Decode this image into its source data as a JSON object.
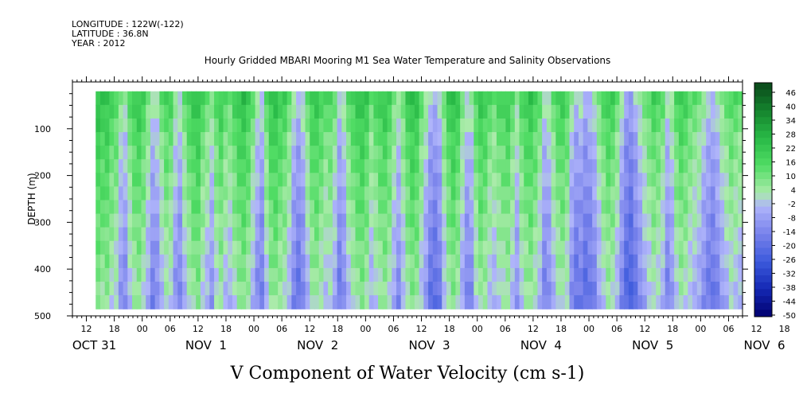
{
  "header": {
    "longitude": "LONGITUDE : 122W(-122)",
    "latitude": "LATITUDE : 36.8N",
    "year": "YEAR : 2012"
  },
  "chart_data": {
    "type": "heatmap",
    "title": "Hourly Gridded MBARI Mooring M1 Sea Water Temperature and Salinity Observations",
    "xlabel": "V Component of Water Velocity (cm s-1)",
    "ylabel": "DEPTH (m)",
    "y_inverted": true,
    "ylim": [
      500,
      0
    ],
    "y_ticks": [
      100,
      200,
      300,
      400,
      500
    ],
    "x_unit": "hours since OCT 31 00:00",
    "xlim": [
      9,
      153
    ],
    "data_x_range": [
      14,
      153
    ],
    "data_y_range": [
      20,
      485
    ],
    "x_tick_labels": [
      "12",
      "18",
      "00",
      "06",
      "12",
      "18",
      "00",
      "06",
      "12",
      "18",
      "00",
      "06",
      "12",
      "18",
      "00",
      "06",
      "12",
      "18",
      "00",
      "06",
      "12",
      "18",
      "00",
      "06",
      "12",
      "18",
      "00"
    ],
    "x_tick_hours": [
      12,
      18,
      24,
      30,
      36,
      42,
      48,
      54,
      60,
      66,
      72,
      78,
      84,
      90,
      96,
      102,
      108,
      114,
      120,
      126,
      132,
      138,
      144,
      150,
      156,
      162,
      168
    ],
    "date_labels": [
      "OCT 31",
      "NOV  1",
      "NOV  2",
      "NOV  3",
      "NOV  4",
      "NOV  5",
      "NOV  6"
    ],
    "date_label_hours": [
      12,
      36,
      60,
      84,
      108,
      132,
      156
    ],
    "colorbar": {
      "labels": [
        "46",
        "40",
        "34",
        "28",
        "22",
        "16",
        "10",
        "4",
        "-2",
        "-8",
        "-14",
        "-20",
        "-26",
        "-32",
        "-38",
        "-44",
        "-50"
      ],
      "range": [
        -50,
        52
      ]
    },
    "column_v": [
      16,
      14,
      15,
      10,
      8,
      -2,
      -4,
      6,
      12,
      14,
      10,
      2,
      -6,
      -4,
      4,
      10,
      8,
      -2,
      -6,
      4,
      10,
      14,
      16,
      8,
      4,
      -2,
      8,
      12,
      6,
      4,
      10,
      14,
      16,
      12,
      4,
      -4,
      -8,
      6,
      14,
      16,
      12,
      10,
      4,
      -6,
      -10,
      -6,
      4,
      12,
      14,
      10,
      6,
      8,
      2,
      -8,
      -4,
      6,
      10,
      14,
      16,
      12,
      4,
      8,
      12,
      14,
      10,
      2,
      -4,
      4,
      12,
      16,
      14,
      6,
      -2,
      -10,
      -12,
      -8,
      4,
      12,
      16,
      12,
      2,
      -6,
      -4,
      8,
      14,
      12,
      6,
      4,
      8,
      10,
      12,
      6,
      -2,
      8,
      12,
      14,
      10,
      4,
      -6,
      -4,
      4,
      10,
      12,
      8,
      -4,
      -10,
      -8,
      -12,
      -10,
      -6,
      2,
      8,
      12,
      10,
      4,
      -6,
      -14,
      -16,
      -10,
      -4,
      2,
      6,
      10,
      8,
      4,
      -6,
      -2,
      8,
      12,
      10,
      6,
      4,
      2,
      -4,
      -8,
      -10,
      -6,
      0,
      4,
      8,
      6,
      4
    ],
    "depth_v": [
      10,
      8,
      6,
      4,
      3,
      2,
      1,
      0,
      -1,
      -2,
      -3,
      -4,
      -5,
      -6,
      -7,
      -8
    ]
  }
}
